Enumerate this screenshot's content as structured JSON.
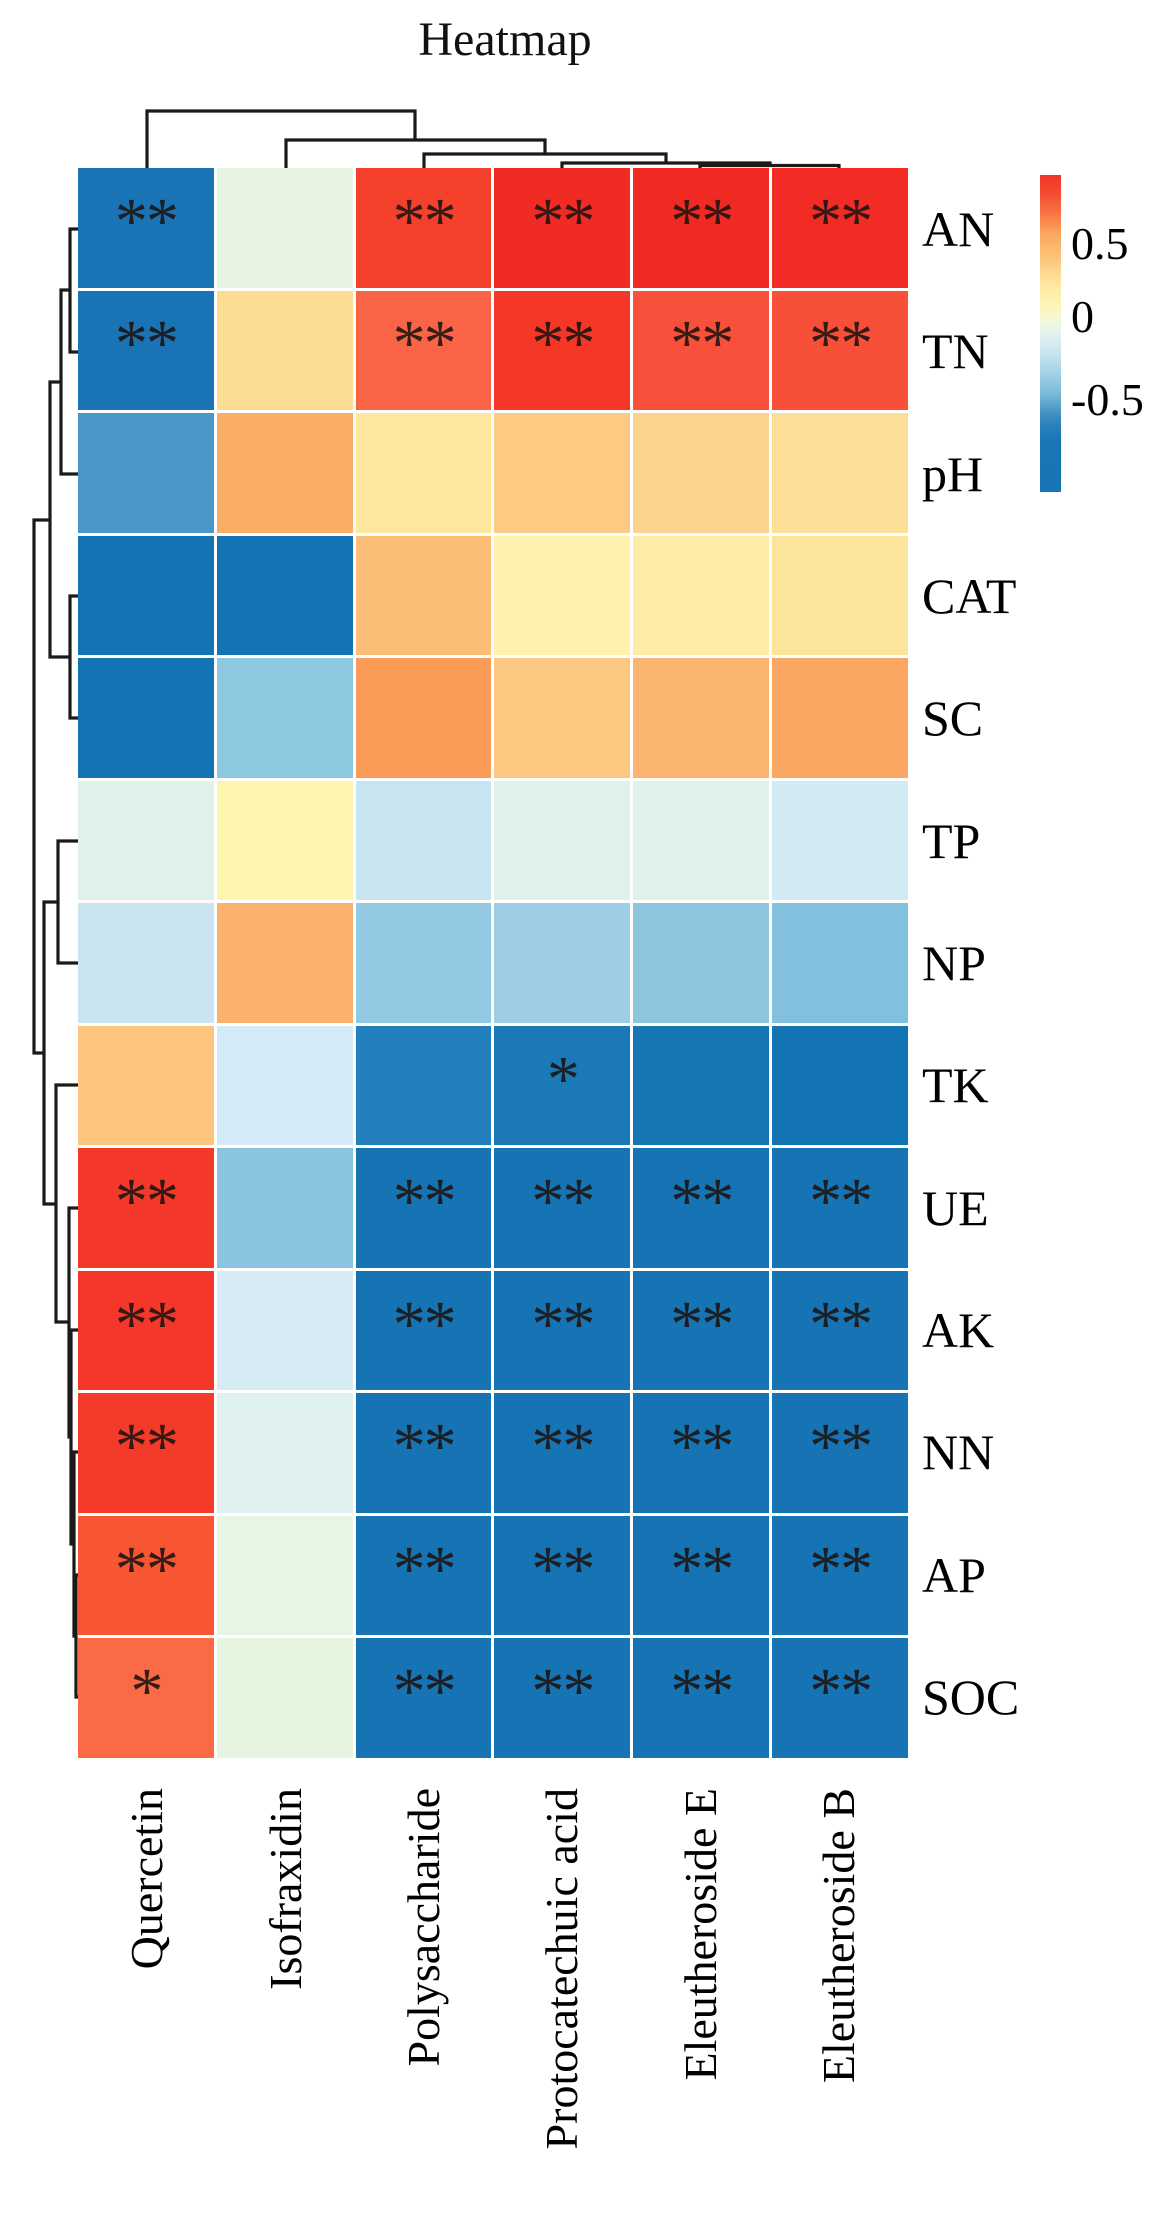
{
  "title": "Heatmap",
  "chart_data": {
    "type": "heatmap",
    "title": "Heatmap",
    "columns": [
      "Quercetin",
      "Isofraxidin",
      "Polysaccharide",
      "Protocatechuic acid",
      "Eleutheroside E",
      "Eleutheroside B"
    ],
    "rows": [
      "AN",
      "TN",
      "pH",
      "CAT",
      "SC",
      "TP",
      "NP",
      "TK",
      "UE",
      "AK",
      "NN",
      "AP",
      "SOC"
    ],
    "cell_colors": [
      [
        "#1A73B4",
        "#E7F4E2",
        "#F5402C",
        "#F02B23",
        "#F12923",
        "#F22C24"
      ],
      [
        "#1A73B4",
        "#FCDC92",
        "#F96447",
        "#F53728",
        "#F8503A",
        "#F84F39"
      ],
      [
        "#4A97C9",
        "#FBAC67",
        "#FEE69D",
        "#FCCA83",
        "#FCD38C",
        "#FDDE96"
      ],
      [
        "#1473B3",
        "#1473B3",
        "#FCBE77",
        "#FEF2AD",
        "#FDEDA6",
        "#FDE49B"
      ],
      [
        "#1473B3",
        "#8FC8E1",
        "#FA9B57",
        "#FCC780",
        "#FBB570",
        "#FAA763"
      ],
      [
        "#E0F1E9",
        "#FEF6AF",
        "#C9E4F1",
        "#E0F1EC",
        "#E1F2EA",
        "#D2EAF4"
      ],
      [
        "#CBE4F1",
        "#FBB26D",
        "#92C8E2",
        "#9ECDE5",
        "#8EC6E0",
        "#83C0DD"
      ],
      [
        "#FCC67E",
        "#D2EBF6",
        "#2280BC",
        "#1B79B7",
        "#1777B5",
        "#1274B3"
      ],
      [
        "#F4392B",
        "#8AC4DF",
        "#1673B4",
        "#1673B4",
        "#1673B4",
        "#1673B4"
      ],
      [
        "#F4372A",
        "#D6EBF4",
        "#1673B4",
        "#1673B4",
        "#1673B4",
        "#1673B4"
      ],
      [
        "#F43B2A",
        "#DFF2EF",
        "#1673B4",
        "#1673B4",
        "#1673B4",
        "#1673B4"
      ],
      [
        "#F85533",
        "#E6F5E4",
        "#1673B4",
        "#1673B4",
        "#1673B4",
        "#1673B4"
      ],
      [
        "#FA6A44",
        "#E6F5E0",
        "#1673B4",
        "#1673B4",
        "#1673B4",
        "#1673B4"
      ]
    ],
    "significance": [
      [
        "**",
        "",
        "**",
        "**",
        "**",
        "**"
      ],
      [
        "**",
        "",
        "**",
        "**",
        "**",
        "**"
      ],
      [
        "",
        "",
        "",
        "",
        "",
        ""
      ],
      [
        "",
        "",
        "",
        "",
        "",
        ""
      ],
      [
        "",
        "",
        "",
        "",
        "",
        ""
      ],
      [
        "",
        "",
        "",
        "",
        "",
        ""
      ],
      [
        "",
        "",
        "",
        "",
        "",
        ""
      ],
      [
        "",
        "",
        "",
        "*",
        "",
        ""
      ],
      [
        "**",
        "",
        "**",
        "**",
        "**",
        "**"
      ],
      [
        "**",
        "",
        "**",
        "**",
        "**",
        "**"
      ],
      [
        "**",
        "",
        "**",
        "**",
        "**",
        "**"
      ],
      [
        "**",
        "",
        "**",
        "**",
        "**",
        "**"
      ],
      [
        "*",
        "",
        "**",
        "**",
        "**",
        "**"
      ]
    ],
    "estimated_values": [
      [
        -0.8,
        0.03,
        0.85,
        0.9,
        0.9,
        0.9
      ],
      [
        -0.8,
        0.35,
        0.7,
        0.88,
        0.78,
        0.78
      ],
      [
        -0.55,
        0.45,
        0.25,
        0.38,
        0.33,
        0.28
      ],
      [
        -0.8,
        -0.8,
        0.4,
        0.18,
        0.22,
        0.26
      ],
      [
        -0.8,
        -0.45,
        0.55,
        0.4,
        0.45,
        0.5
      ],
      [
        -0.05,
        0.12,
        -0.15,
        -0.05,
        -0.05,
        -0.12
      ],
      [
        -0.15,
        0.42,
        -0.35,
        -0.32,
        -0.38,
        -0.42
      ],
      [
        0.42,
        -0.12,
        -0.72,
        -0.77,
        -0.78,
        -0.8
      ],
      [
        0.85,
        -0.42,
        -0.8,
        -0.8,
        -0.8,
        -0.8
      ],
      [
        0.85,
        -0.12,
        -0.8,
        -0.8,
        -0.8,
        -0.8
      ],
      [
        0.85,
        -0.08,
        -0.8,
        -0.8,
        -0.8,
        -0.8
      ],
      [
        0.75,
        -0.05,
        -0.8,
        -0.8,
        -0.8,
        -0.8
      ],
      [
        0.65,
        -0.05,
        -0.8,
        -0.8,
        -0.8,
        -0.8
      ]
    ],
    "colorbar": {
      "ticks": [
        {
          "label": "0.5",
          "pos": 0.218
        },
        {
          "label": "0",
          "pos": 0.448
        },
        {
          "label": "-0.5",
          "pos": 0.71
        }
      ],
      "gradient": [
        {
          "color": "#F0352A",
          "pos": 0
        },
        {
          "color": "#F4472F",
          "pos": 5
        },
        {
          "color": "#F96C41",
          "pos": 11
        },
        {
          "color": "#FBA45C",
          "pos": 18
        },
        {
          "color": "#FCC87D",
          "pos": 27
        },
        {
          "color": "#FEE9A2",
          "pos": 35
        },
        {
          "color": "#FDF4B5",
          "pos": 41
        },
        {
          "color": "#F3F9DB",
          "pos": 46
        },
        {
          "color": "#E2F2EC",
          "pos": 50
        },
        {
          "color": "#D4EAF2",
          "pos": 54
        },
        {
          "color": "#A6D4E8",
          "pos": 62
        },
        {
          "color": "#7ABAD8",
          "pos": 69
        },
        {
          "color": "#4492C5",
          "pos": 75
        },
        {
          "color": "#2A80BB",
          "pos": 79
        },
        {
          "color": "#1B76B5",
          "pos": 84
        },
        {
          "color": "#1776B5",
          "pos": 100
        }
      ]
    },
    "dendrograms": {
      "line_color": "#1a1a1a",
      "top_segments": [
        [
          [
            147,
            168
          ],
          [
            147,
            111
          ],
          [
            415,
            111
          ],
          [
            415,
            140
          ]
        ],
        [
          [
            286,
            168
          ],
          [
            286,
            140
          ],
          [
            545,
            140
          ],
          [
            545,
            154
          ]
        ],
        [
          [
            424,
            168
          ],
          [
            424,
            154
          ],
          [
            666,
            154
          ],
          [
            666,
            163
          ]
        ],
        [
          [
            562,
            168
          ],
          [
            562,
            163
          ],
          [
            770,
            163
          ],
          [
            770,
            166
          ]
        ],
        [
          [
            700,
            168
          ],
          [
            700,
            165.5
          ],
          [
            839,
            165.5
          ],
          [
            839,
            168
          ]
        ]
      ],
      "left_segments": [
        [
          [
            78,
            229
          ],
          [
            70,
            229
          ],
          [
            70,
            352
          ],
          [
            78,
            352
          ]
        ],
        [
          [
            70,
            290
          ],
          [
            61,
            290
          ],
          [
            61,
            474
          ],
          [
            78,
            474
          ]
        ],
        [
          [
            78,
            596
          ],
          [
            70,
            596
          ],
          [
            70,
            718
          ],
          [
            78,
            718
          ]
        ],
        [
          [
            61,
            382
          ],
          [
            50,
            382
          ],
          [
            50,
            657
          ],
          [
            70,
            657
          ]
        ],
        [
          [
            78,
            841
          ],
          [
            58,
            841
          ],
          [
            58,
            963
          ],
          [
            78,
            963
          ]
        ],
        [
          [
            78,
            1575
          ],
          [
            76,
            1575
          ],
          [
            76,
            1697
          ],
          [
            78,
            1697
          ]
        ],
        [
          [
            78,
            1452
          ],
          [
            74,
            1452
          ],
          [
            74,
            1636
          ],
          [
            76,
            1636
          ]
        ],
        [
          [
            78,
            1330
          ],
          [
            71,
            1330
          ],
          [
            71,
            1544
          ],
          [
            74,
            1544
          ]
        ],
        [
          [
            78,
            1208
          ],
          [
            69,
            1208
          ],
          [
            69,
            1437
          ],
          [
            71,
            1437
          ]
        ],
        [
          [
            78,
            1085
          ],
          [
            56,
            1085
          ],
          [
            56,
            1322
          ],
          [
            69,
            1322
          ]
        ],
        [
          [
            58,
            902
          ],
          [
            44,
            902
          ],
          [
            44,
            1204
          ],
          [
            56,
            1204
          ]
        ],
        [
          [
            50,
            520
          ],
          [
            34,
            520
          ],
          [
            34,
            1053
          ],
          [
            44,
            1053
          ]
        ]
      ]
    }
  }
}
